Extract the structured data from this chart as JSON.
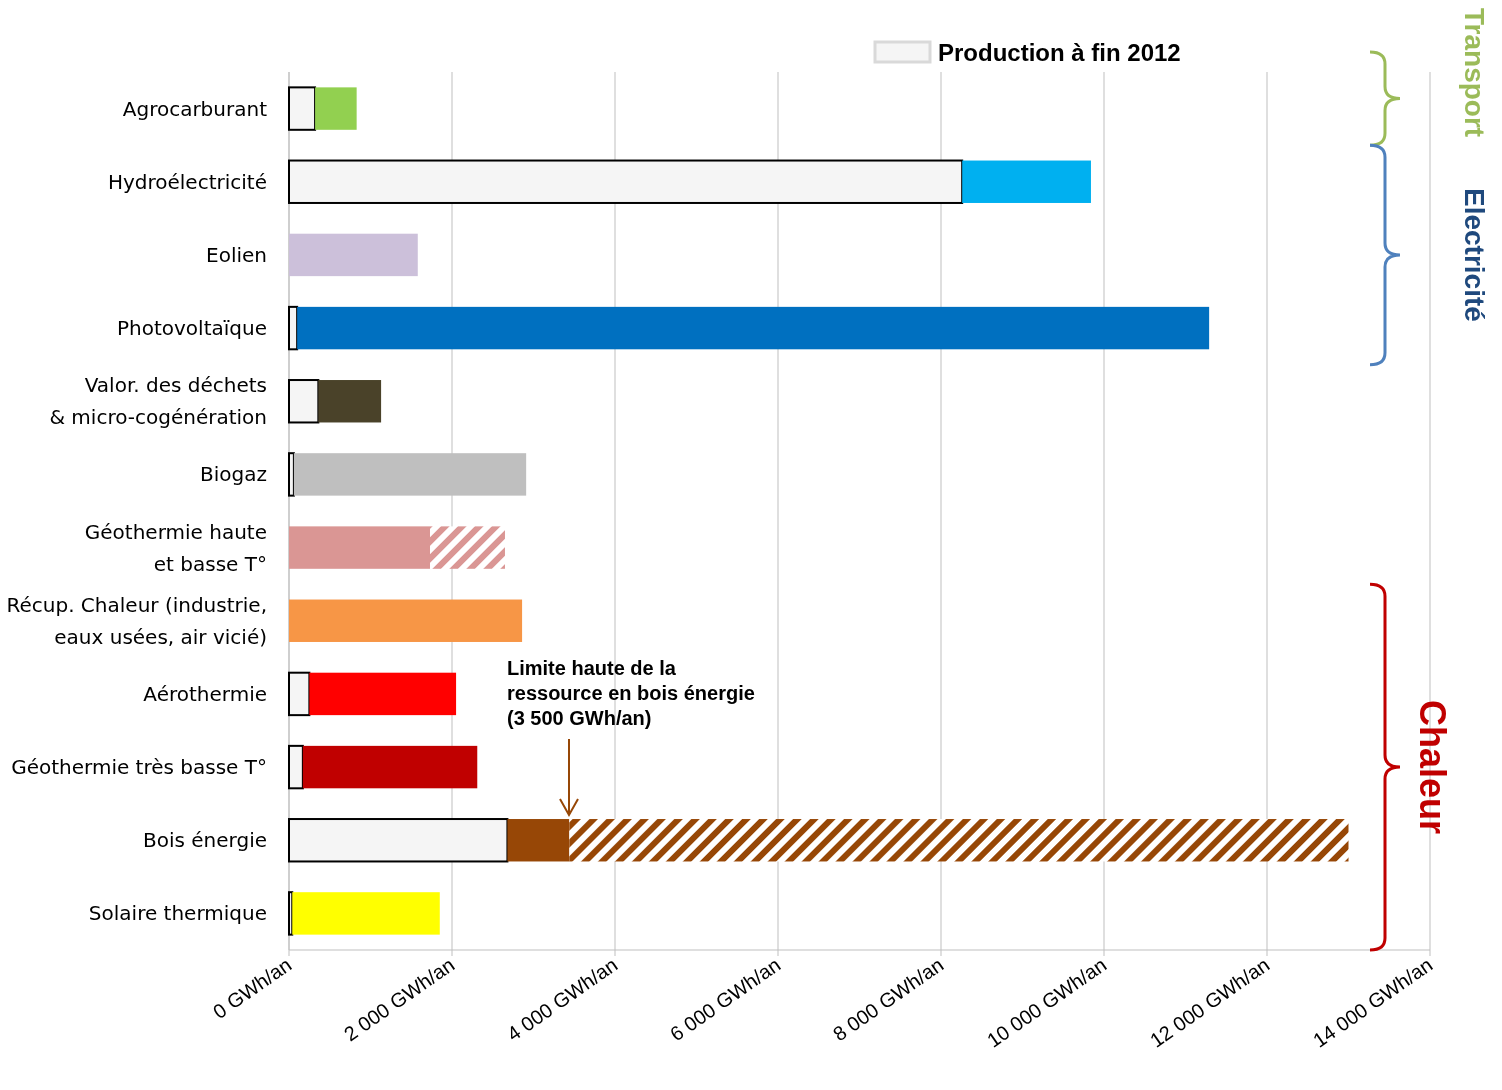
{
  "chart_data": {
    "type": "bar",
    "orientation": "horizontal",
    "stacked": true,
    "categories": [
      "Agrocarburant",
      "Hydroélectricité",
      "Eolien",
      "Photovoltaïque",
      "Valor. des déchets\n& micro-cogénération",
      "Biogaz",
      "Géothermie haute\net basse T°",
      "Récup. Chaleur (industrie,\neaux usées, air vicié)",
      "Aérothermie",
      "Géothermie très basse T°",
      "Bois énergie",
      "Solaire thermique"
    ],
    "series": [
      {
        "name": "Production à fin 2012",
        "color": "#f5f5f5",
        "values": [
          320,
          8260,
          null,
          100,
          360,
          60,
          null,
          null,
          250,
          170,
          2680,
          40
        ]
      },
      {
        "colors": [
          "#92d050",
          "#00b0f0",
          "#ccc0da",
          "#0070c0",
          "#4a4229",
          "#bfbfbf",
          "#da9694",
          "#f79646",
          "#ff0000",
          "#c00000",
          "#974706",
          "#ffff00"
        ],
        "values": [
          510,
          1580,
          1580,
          11190,
          770,
          2850,
          1730,
          2860,
          1800,
          2140,
          760,
          1810
        ]
      },
      {
        "colors": [
          null,
          null,
          null,
          null,
          null,
          null,
          "#da9694",
          null,
          null,
          null,
          "#974706",
          null
        ],
        "values": [
          null,
          null,
          null,
          null,
          null,
          null,
          920,
          null,
          null,
          null,
          9560,
          null
        ]
      }
    ],
    "xlim": [
      0,
      14000
    ],
    "xticks": [
      {
        "value": 0,
        "label": "0 GWh/an"
      },
      {
        "value": 2000,
        "label": "2 000 GWh/an"
      },
      {
        "value": 4000,
        "label": "4 000 GWh/an"
      },
      {
        "value": 6000,
        "label": "6 000 GWh/an"
      },
      {
        "value": 8000,
        "label": "8 000 GWh/an"
      },
      {
        "value": 10000,
        "label": "10 000 GWh/an"
      },
      {
        "value": 12000,
        "label": "12 000 GWh/an"
      },
      {
        "value": 14000,
        "label": "14 000 GWh/an"
      }
    ],
    "grid": "x",
    "legend": "top right",
    "annotations": [
      "Limite haute de la\nressource en bois énergie\n(3 500 GWh/an)",
      "Transport",
      "Electricité",
      "Chaleur"
    ]
  }
}
